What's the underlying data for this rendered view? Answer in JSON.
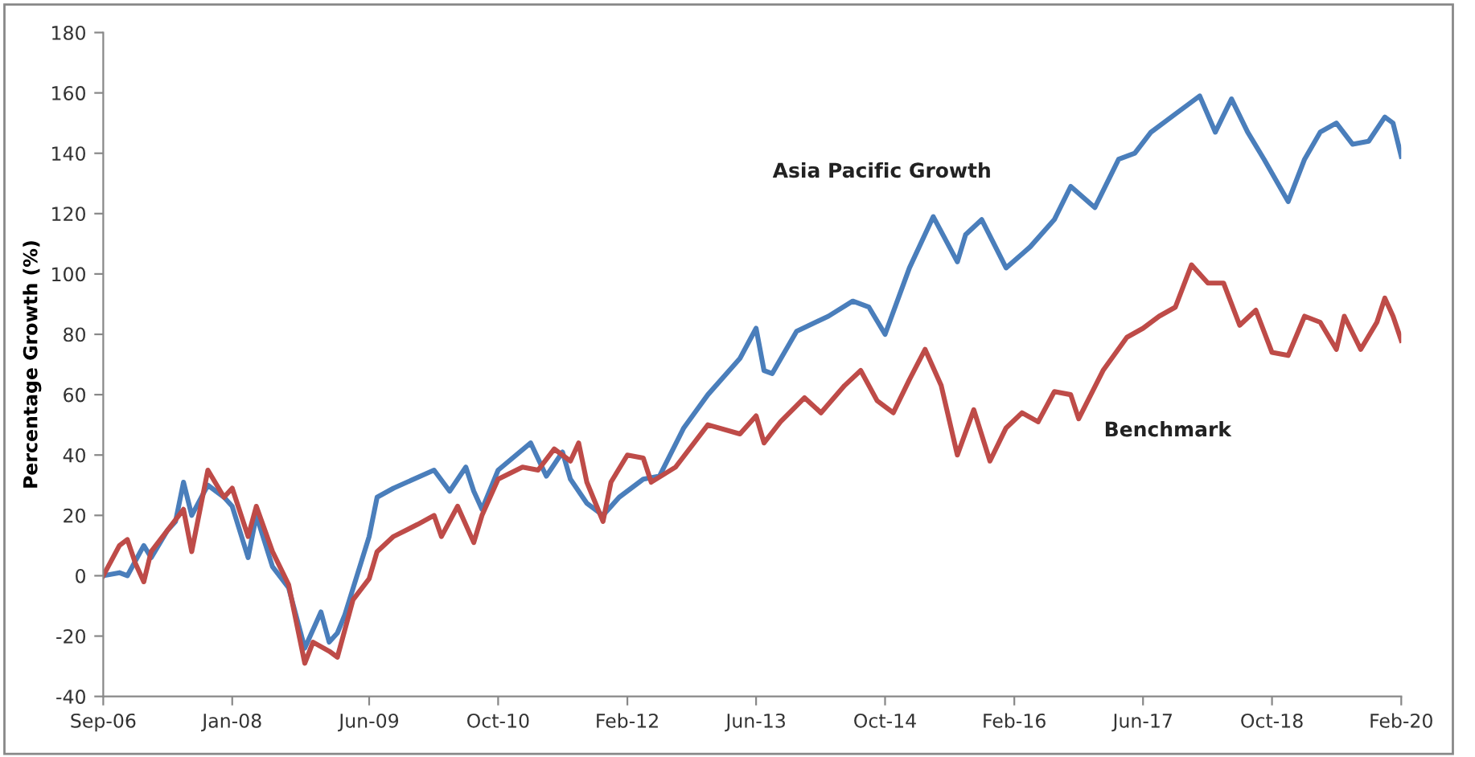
{
  "chart_data": {
    "type": "line",
    "ylabel": "Percentage Growth (%)",
    "xlim": [
      "2006-09-01",
      "2020-02-01"
    ],
    "xticks": [
      {
        "value": "2006-09-01",
        "label": "Sep-06"
      },
      {
        "value": "2008-01-01",
        "label": "Jan-08"
      },
      {
        "value": "2009-06-01",
        "label": "Jun-09"
      },
      {
        "value": "2010-10-01",
        "label": "Oct-10"
      },
      {
        "value": "2012-02-01",
        "label": "Feb-12"
      },
      {
        "value": "2013-06-01",
        "label": "Jun-13"
      },
      {
        "value": "2014-10-01",
        "label": "Oct-14"
      },
      {
        "value": "2016-02-01",
        "label": "Feb-16"
      },
      {
        "value": "2017-06-01",
        "label": "Jun-17"
      },
      {
        "value": "2018-10-01",
        "label": "Oct-18"
      },
      {
        "value": "2020-02-01",
        "label": "Feb-20"
      }
    ],
    "ylim": [
      -40,
      180
    ],
    "yticks": [
      -40,
      -20,
      0,
      20,
      40,
      60,
      80,
      100,
      120,
      140,
      160,
      180
    ],
    "grid": false,
    "legend": false,
    "marker": "none",
    "line_style": "solid",
    "series": [
      {
        "name": "Asia Pacific Growth",
        "color": "#4a7ebb",
        "x": [
          "2006-09",
          "2006-11",
          "2006-12",
          "2007-02",
          "2007-03",
          "2007-05",
          "2007-06",
          "2007-07",
          "2007-08",
          "2007-10",
          "2007-12",
          "2008-01",
          "2008-03",
          "2008-04",
          "2008-06",
          "2008-08",
          "2008-10",
          "2008-12",
          "2009-01",
          "2009-02",
          "2009-03",
          "2009-06",
          "2009-07",
          "2009-09",
          "2010-02",
          "2010-04",
          "2010-06",
          "2010-07",
          "2010-08",
          "2010-10",
          "2011-02",
          "2011-04",
          "2011-06",
          "2011-07",
          "2011-09",
          "2011-11",
          "2012-01",
          "2012-04",
          "2012-06",
          "2012-09",
          "2012-12",
          "2013-04",
          "2013-06",
          "2013-07",
          "2013-08",
          "2013-11",
          "2014-03",
          "2014-06",
          "2014-08",
          "2014-10",
          "2015-01",
          "2015-04",
          "2015-07",
          "2015-08",
          "2015-10",
          "2016-01",
          "2016-04",
          "2016-07",
          "2016-09",
          "2016-12",
          "2017-03",
          "2017-05",
          "2017-07",
          "2017-10",
          "2018-01",
          "2018-03",
          "2018-05",
          "2018-07",
          "2018-09",
          "2018-12",
          "2019-02",
          "2019-04",
          "2019-06",
          "2019-08",
          "2019-10",
          "2019-12",
          "2020-01",
          "2020-02"
        ],
        "values": [
          0,
          1,
          0,
          10,
          6,
          15,
          18,
          31,
          20,
          30,
          26,
          23,
          6,
          20,
          3,
          -4,
          -24,
          -12,
          -22,
          -19,
          -13,
          13,
          26,
          29,
          35,
          28,
          36,
          28,
          22,
          35,
          44,
          33,
          41,
          32,
          24,
          20,
          26,
          32,
          33,
          49,
          60,
          72,
          82,
          68,
          67,
          81,
          86,
          91,
          89,
          80,
          102,
          119,
          104,
          113,
          118,
          102,
          109,
          118,
          129,
          122,
          138,
          140,
          147,
          153,
          159,
          147,
          158,
          147,
          138,
          124,
          138,
          147,
          150,
          143,
          144,
          152,
          150,
          139
        ]
      },
      {
        "name": "Benchmark",
        "color": "#be4b48",
        "x": [
          "2006-09",
          "2006-11",
          "2006-12",
          "2007-01",
          "2007-02",
          "2007-03",
          "2007-05",
          "2007-07",
          "2007-08",
          "2007-10",
          "2007-12",
          "2008-01",
          "2008-03",
          "2008-04",
          "2008-06",
          "2008-08",
          "2008-10",
          "2008-11",
          "2009-01",
          "2009-02",
          "2009-04",
          "2009-06",
          "2009-07",
          "2009-09",
          "2009-12",
          "2010-02",
          "2010-03",
          "2010-05",
          "2010-07",
          "2010-08",
          "2010-10",
          "2011-01",
          "2011-03",
          "2011-05",
          "2011-07",
          "2011-08",
          "2011-09",
          "2011-11",
          "2011-12",
          "2012-02",
          "2012-04",
          "2012-05",
          "2012-08",
          "2012-12",
          "2013-04",
          "2013-06",
          "2013-07",
          "2013-09",
          "2013-12",
          "2014-02",
          "2014-05",
          "2014-07",
          "2014-09",
          "2014-11",
          "2015-01",
          "2015-03",
          "2015-05",
          "2015-07",
          "2015-09",
          "2015-11",
          "2016-01",
          "2016-03",
          "2016-05",
          "2016-07",
          "2016-09",
          "2016-10",
          "2017-01",
          "2017-04",
          "2017-06",
          "2017-08",
          "2017-10",
          "2017-12",
          "2018-02",
          "2018-04",
          "2018-06",
          "2018-08",
          "2018-10",
          "2018-12",
          "2019-02",
          "2019-04",
          "2019-06",
          "2019-07",
          "2019-09",
          "2019-11",
          "2019-12",
          "2020-01",
          "2020-02"
        ],
        "values": [
          0,
          10,
          12,
          4,
          -2,
          8,
          15,
          22,
          8,
          35,
          26,
          29,
          13,
          23,
          8,
          -3,
          -29,
          -22,
          -25,
          -27,
          -8,
          -1,
          8,
          13,
          17,
          20,
          13,
          23,
          11,
          20,
          32,
          36,
          35,
          42,
          38,
          44,
          31,
          18,
          31,
          40,
          39,
          31,
          36,
          50,
          47,
          53,
          44,
          51,
          59,
          54,
          63,
          68,
          58,
          54,
          65,
          75,
          63,
          40,
          55,
          38,
          49,
          54,
          51,
          61,
          60,
          52,
          68,
          79,
          82,
          86,
          89,
          103,
          97,
          97,
          83,
          88,
          74,
          73,
          86,
          84,
          75,
          86,
          75,
          84,
          92,
          86,
          78
        ]
      }
    ]
  }
}
